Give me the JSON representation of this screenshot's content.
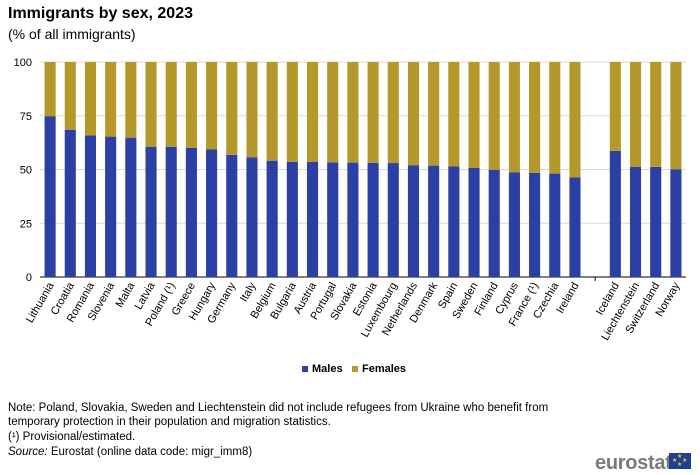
{
  "header": {
    "title": "Immigrants by sex, 2023",
    "subtitle": "(% of all immigrants)"
  },
  "chart_data": {
    "type": "bar",
    "stacked": true,
    "categories": [
      "Lithuania",
      "Croatia",
      "Romania",
      "Slovenia",
      "Malta",
      "Latvia",
      "Poland (¹)",
      "Greece",
      "Hungary",
      "Germany",
      "Italy",
      "Belgium",
      "Bulgaria",
      "Austria",
      "Portugal",
      "Slovakia",
      "Estonia",
      "Luxembourg",
      "Netherlands",
      "Denmark",
      "Spain",
      "Sweden",
      "Finland",
      "Cyprus",
      "France (¹)",
      "Czechia",
      "Ireland",
      "Iceland",
      "Liechtenstein",
      "Switzerland",
      "Norway"
    ],
    "group_break_before": "Iceland",
    "series": [
      {
        "name": "Males",
        "color": "#2b3fa4",
        "values": [
          74.8,
          68.5,
          65.8,
          65.3,
          64.8,
          60.6,
          60.5,
          60.1,
          59.3,
          56.8,
          55.7,
          54.1,
          53.6,
          53.6,
          53.3,
          53.2,
          53.1,
          53.0,
          52.0,
          51.8,
          51.4,
          50.7,
          49.9,
          48.7,
          48.4,
          48.1,
          46.3,
          58.7,
          51.3,
          51.2,
          50.1
        ]
      },
      {
        "name": "Females",
        "color": "#b5982c",
        "values": [
          25.2,
          31.5,
          34.2,
          34.7,
          35.2,
          39.4,
          39.5,
          39.9,
          40.7,
          43.2,
          44.3,
          45.9,
          46.4,
          46.4,
          46.7,
          46.8,
          46.9,
          47.0,
          48.0,
          48.2,
          48.6,
          49.3,
          50.1,
          51.3,
          51.6,
          51.9,
          53.7,
          41.3,
          48.7,
          48.8,
          49.9
        ]
      }
    ],
    "yticks": [
      0,
      25,
      50,
      75,
      100
    ],
    "ylim": [
      0,
      100
    ],
    "grid": true,
    "legend_position": "bottom-center"
  },
  "notes": {
    "main": "Note: Poland, Slovakia, Sweden and Liechtenstein did not include refugees from Ukraine who benefit from temporary protection in their population and migration statistics.",
    "provisional": "(¹) Provisional/estimated.",
    "source_label": "Source:",
    "source_text": " Eurostat  (online data code: migr_imm8)"
  },
  "logo": {
    "text": "eurostat"
  }
}
